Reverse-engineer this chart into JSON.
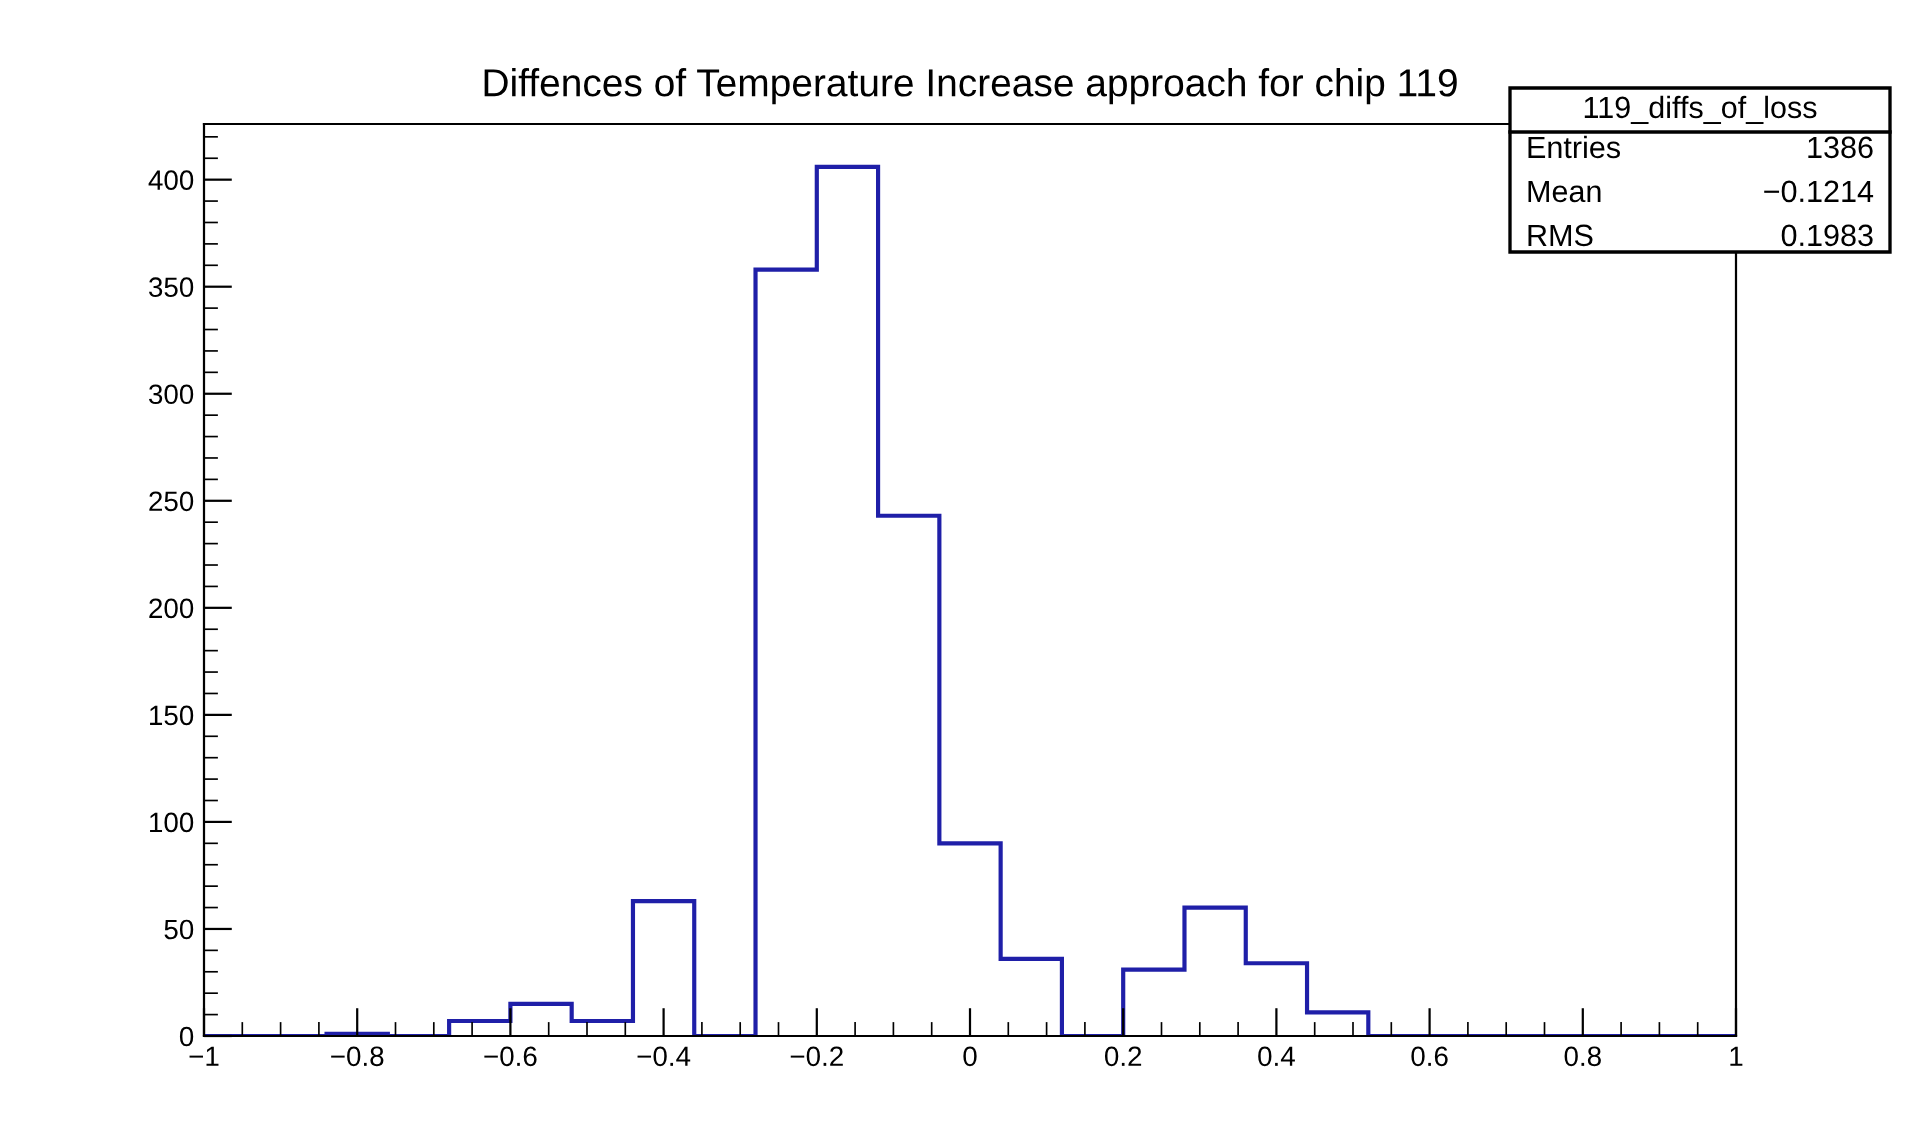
{
  "chart_data": {
    "type": "histogram",
    "title": "Diffences of Temperature Increase approach for chip 119",
    "bins": [
      -1,
      -0.92,
      -0.84,
      -0.76,
      -0.68,
      -0.6,
      -0.52,
      -0.44,
      -0.36,
      -0.28,
      -0.2,
      -0.12,
      -0.04,
      0.04,
      0.12,
      0.2,
      0.28,
      0.36,
      0.44,
      0.52,
      0.6,
      0.68,
      0.76,
      0.84,
      0.92,
      1
    ],
    "values": [
      0,
      0,
      1,
      0,
      7,
      15,
      7,
      63,
      0,
      358,
      406,
      243,
      90,
      36,
      0,
      31,
      60,
      34,
      11,
      0,
      0,
      0,
      0,
      0,
      0
    ],
    "color": "#1f1fa8",
    "xlim": [
      -1,
      1
    ],
    "xticks": [
      -1,
      -0.8,
      -0.6,
      -0.4,
      -0.2,
      0,
      0.2,
      0.4,
      0.6,
      0.8,
      1
    ],
    "ylim": [
      0,
      426
    ],
    "yticks": [
      0,
      50,
      100,
      150,
      200,
      250,
      300,
      350,
      400
    ],
    "grid": false,
    "legend": false,
    "annotations": [
      "119_diffs_of_loss",
      "Entries",
      "1386",
      "Mean",
      "−0.1214",
      "RMS",
      "0.1983"
    ]
  }
}
